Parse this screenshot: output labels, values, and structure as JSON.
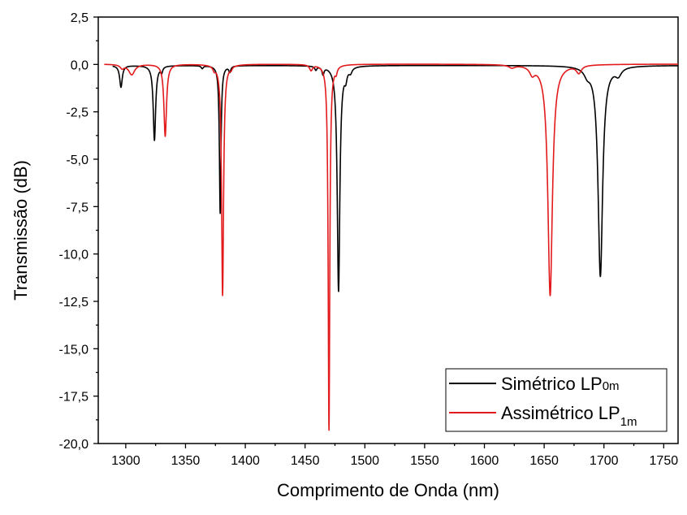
{
  "chart_data": {
    "type": "line",
    "xlabel": "Comprimento de Onda (nm)",
    "ylabel": "Transmissão (dB)",
    "xlim": [
      1277,
      1762
    ],
    "ylim": [
      -20.0,
      2.5
    ],
    "xticks": [
      1300,
      1350,
      1400,
      1450,
      1500,
      1550,
      1600,
      1650,
      1700,
      1750
    ],
    "xtick_labels": [
      "1300",
      "1350",
      "1400",
      "1450",
      "1500",
      "1550",
      "1600",
      "1650",
      "1700",
      "1750"
    ],
    "yticks": [
      2.5,
      0.0,
      -2.5,
      -5.0,
      -7.5,
      -10.0,
      -12.5,
      -15.0,
      -17.5,
      -20.0
    ],
    "ytick_labels": [
      "2,5",
      "0,0",
      "-2,5",
      "-5,0",
      "-7,5",
      "-10,0",
      "-12,5",
      "-15,0",
      "-17,5",
      "-20,0"
    ],
    "grid": false,
    "legend_position": "bottom-right",
    "series": [
      {
        "name": "Simétrico LP",
        "name_subscript": "0m",
        "color": "#000000",
        "baseline": -0.05,
        "x_range": [
          1289,
          1762
        ],
        "dips": [
          {
            "x": 1296,
            "depth": 1.15,
            "width": 1.3
          },
          {
            "x": 1324,
            "depth": 3.95,
            "width": 1.2
          },
          {
            "x": 1330,
            "depth": 0.3,
            "width": 1.0
          },
          {
            "x": 1364,
            "depth": 0.15,
            "width": 1.0
          },
          {
            "x": 1379,
            "depth": 7.8,
            "width": 0.8
          },
          {
            "x": 1387,
            "depth": 0.3,
            "width": 1.0
          },
          {
            "x": 1459,
            "depth": 0.2,
            "width": 1.0
          },
          {
            "x": 1465,
            "depth": 0.4,
            "width": 1.0
          },
          {
            "x": 1478,
            "depth": 11.9,
            "width": 1.3
          },
          {
            "x": 1484,
            "depth": 0.5,
            "width": 1.2
          },
          {
            "x": 1488,
            "depth": 0.25,
            "width": 1.5
          },
          {
            "x": 1686,
            "depth": 0.35,
            "width": 3.0
          },
          {
            "x": 1697,
            "depth": 11.1,
            "width": 2.3
          },
          {
            "x": 1712,
            "depth": 0.4,
            "width": 3.0
          }
        ]
      },
      {
        "name": "Assimétrico LP",
        "name_subscript": "1m",
        "color": "#e31a1c",
        "baseline": 0.02,
        "x_range": [
          1282,
          1762
        ],
        "dips": [
          {
            "x": 1297,
            "depth": 0.2,
            "width": 2.0
          },
          {
            "x": 1305,
            "depth": 0.55,
            "width": 3.0
          },
          {
            "x": 1333,
            "depth": 3.8,
            "width": 1.3
          },
          {
            "x": 1374,
            "depth": 0.2,
            "width": 1.2
          },
          {
            "x": 1381,
            "depth": 12.2,
            "width": 1.0
          },
          {
            "x": 1388,
            "depth": 0.15,
            "width": 1.0
          },
          {
            "x": 1455,
            "depth": 0.3,
            "width": 1.5
          },
          {
            "x": 1470,
            "depth": 19.3,
            "width": 0.8
          },
          {
            "x": 1476,
            "depth": 0.3,
            "width": 1.0
          },
          {
            "x": 1623,
            "depth": 0.15,
            "width": 3.0
          },
          {
            "x": 1640,
            "depth": 0.4,
            "width": 2.5
          },
          {
            "x": 1655,
            "depth": 12.2,
            "width": 2.3
          },
          {
            "x": 1679,
            "depth": 0.4,
            "width": 2.5
          }
        ]
      }
    ]
  }
}
